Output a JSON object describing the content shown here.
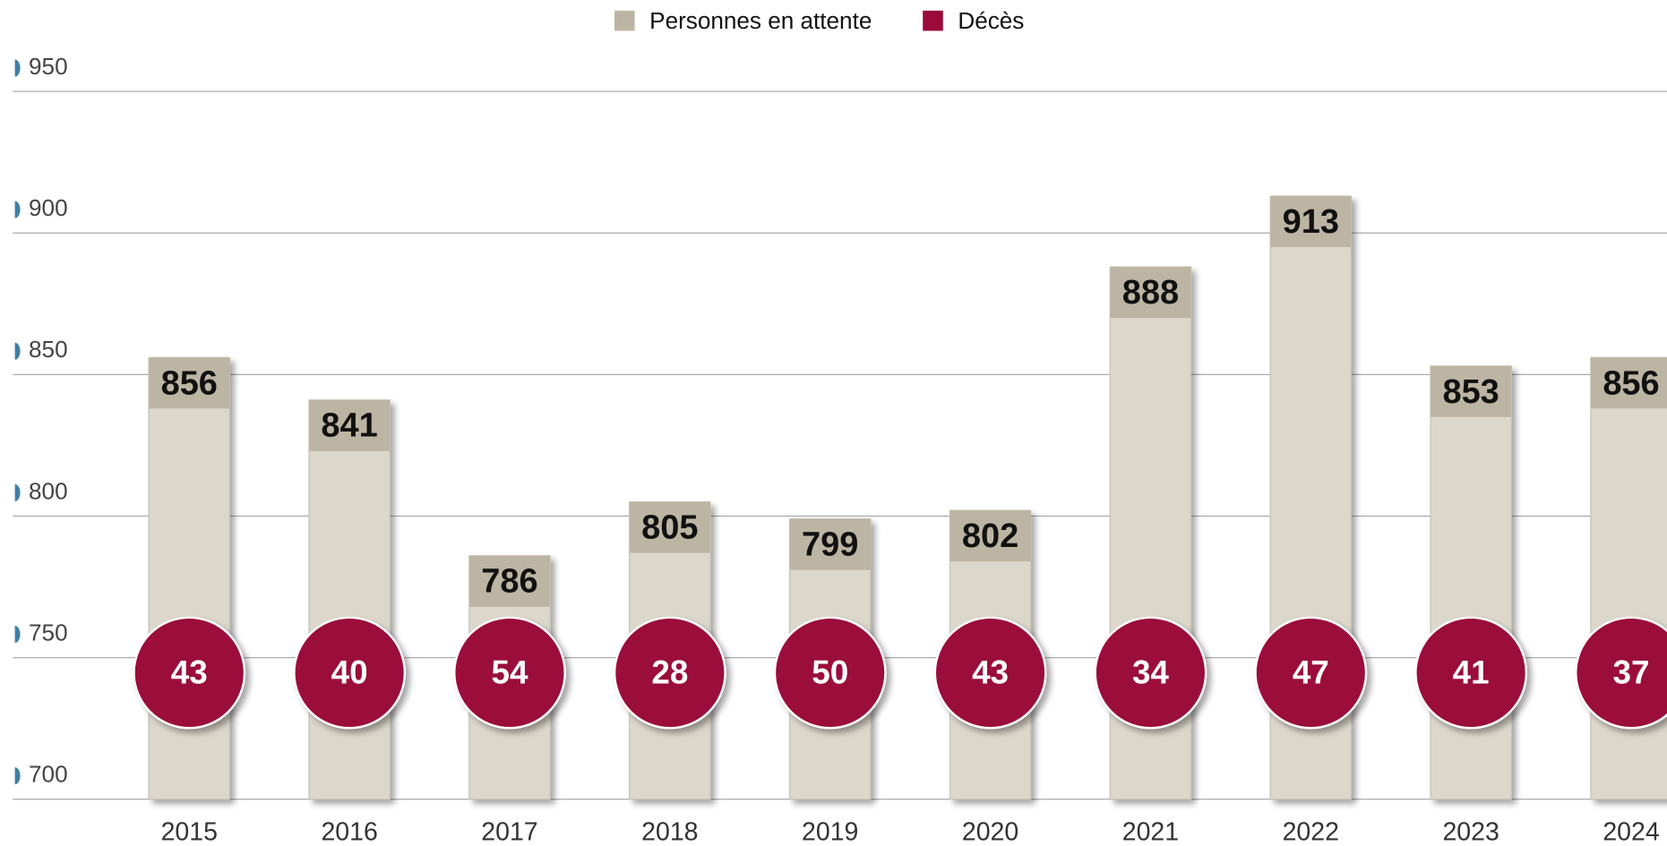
{
  "chart_data": {
    "type": "bar",
    "categories": [
      "2015",
      "2016",
      "2017",
      "2018",
      "2019",
      "2020",
      "2021",
      "2022",
      "2023",
      "2024"
    ],
    "series": [
      {
        "name": "Personnes en attente",
        "color": "#bdb5a3",
        "values": [
          856,
          841,
          786,
          805,
          799,
          802,
          888,
          913,
          853,
          856
        ]
      },
      {
        "name": "Décès",
        "color": "#9b0a3a",
        "values": [
          43,
          40,
          54,
          28,
          50,
          43,
          34,
          47,
          41,
          37
        ]
      }
    ],
    "ylim": [
      700,
      950
    ],
    "yticks": [
      700,
      750,
      800,
      850,
      900,
      950
    ],
    "grid": true
  }
}
